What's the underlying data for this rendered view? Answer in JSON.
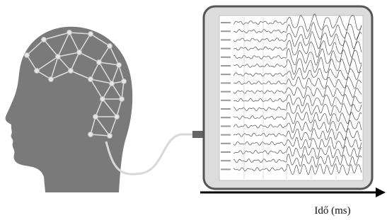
{
  "time_axis": {
    "label": "Idő (ms)"
  }
}
